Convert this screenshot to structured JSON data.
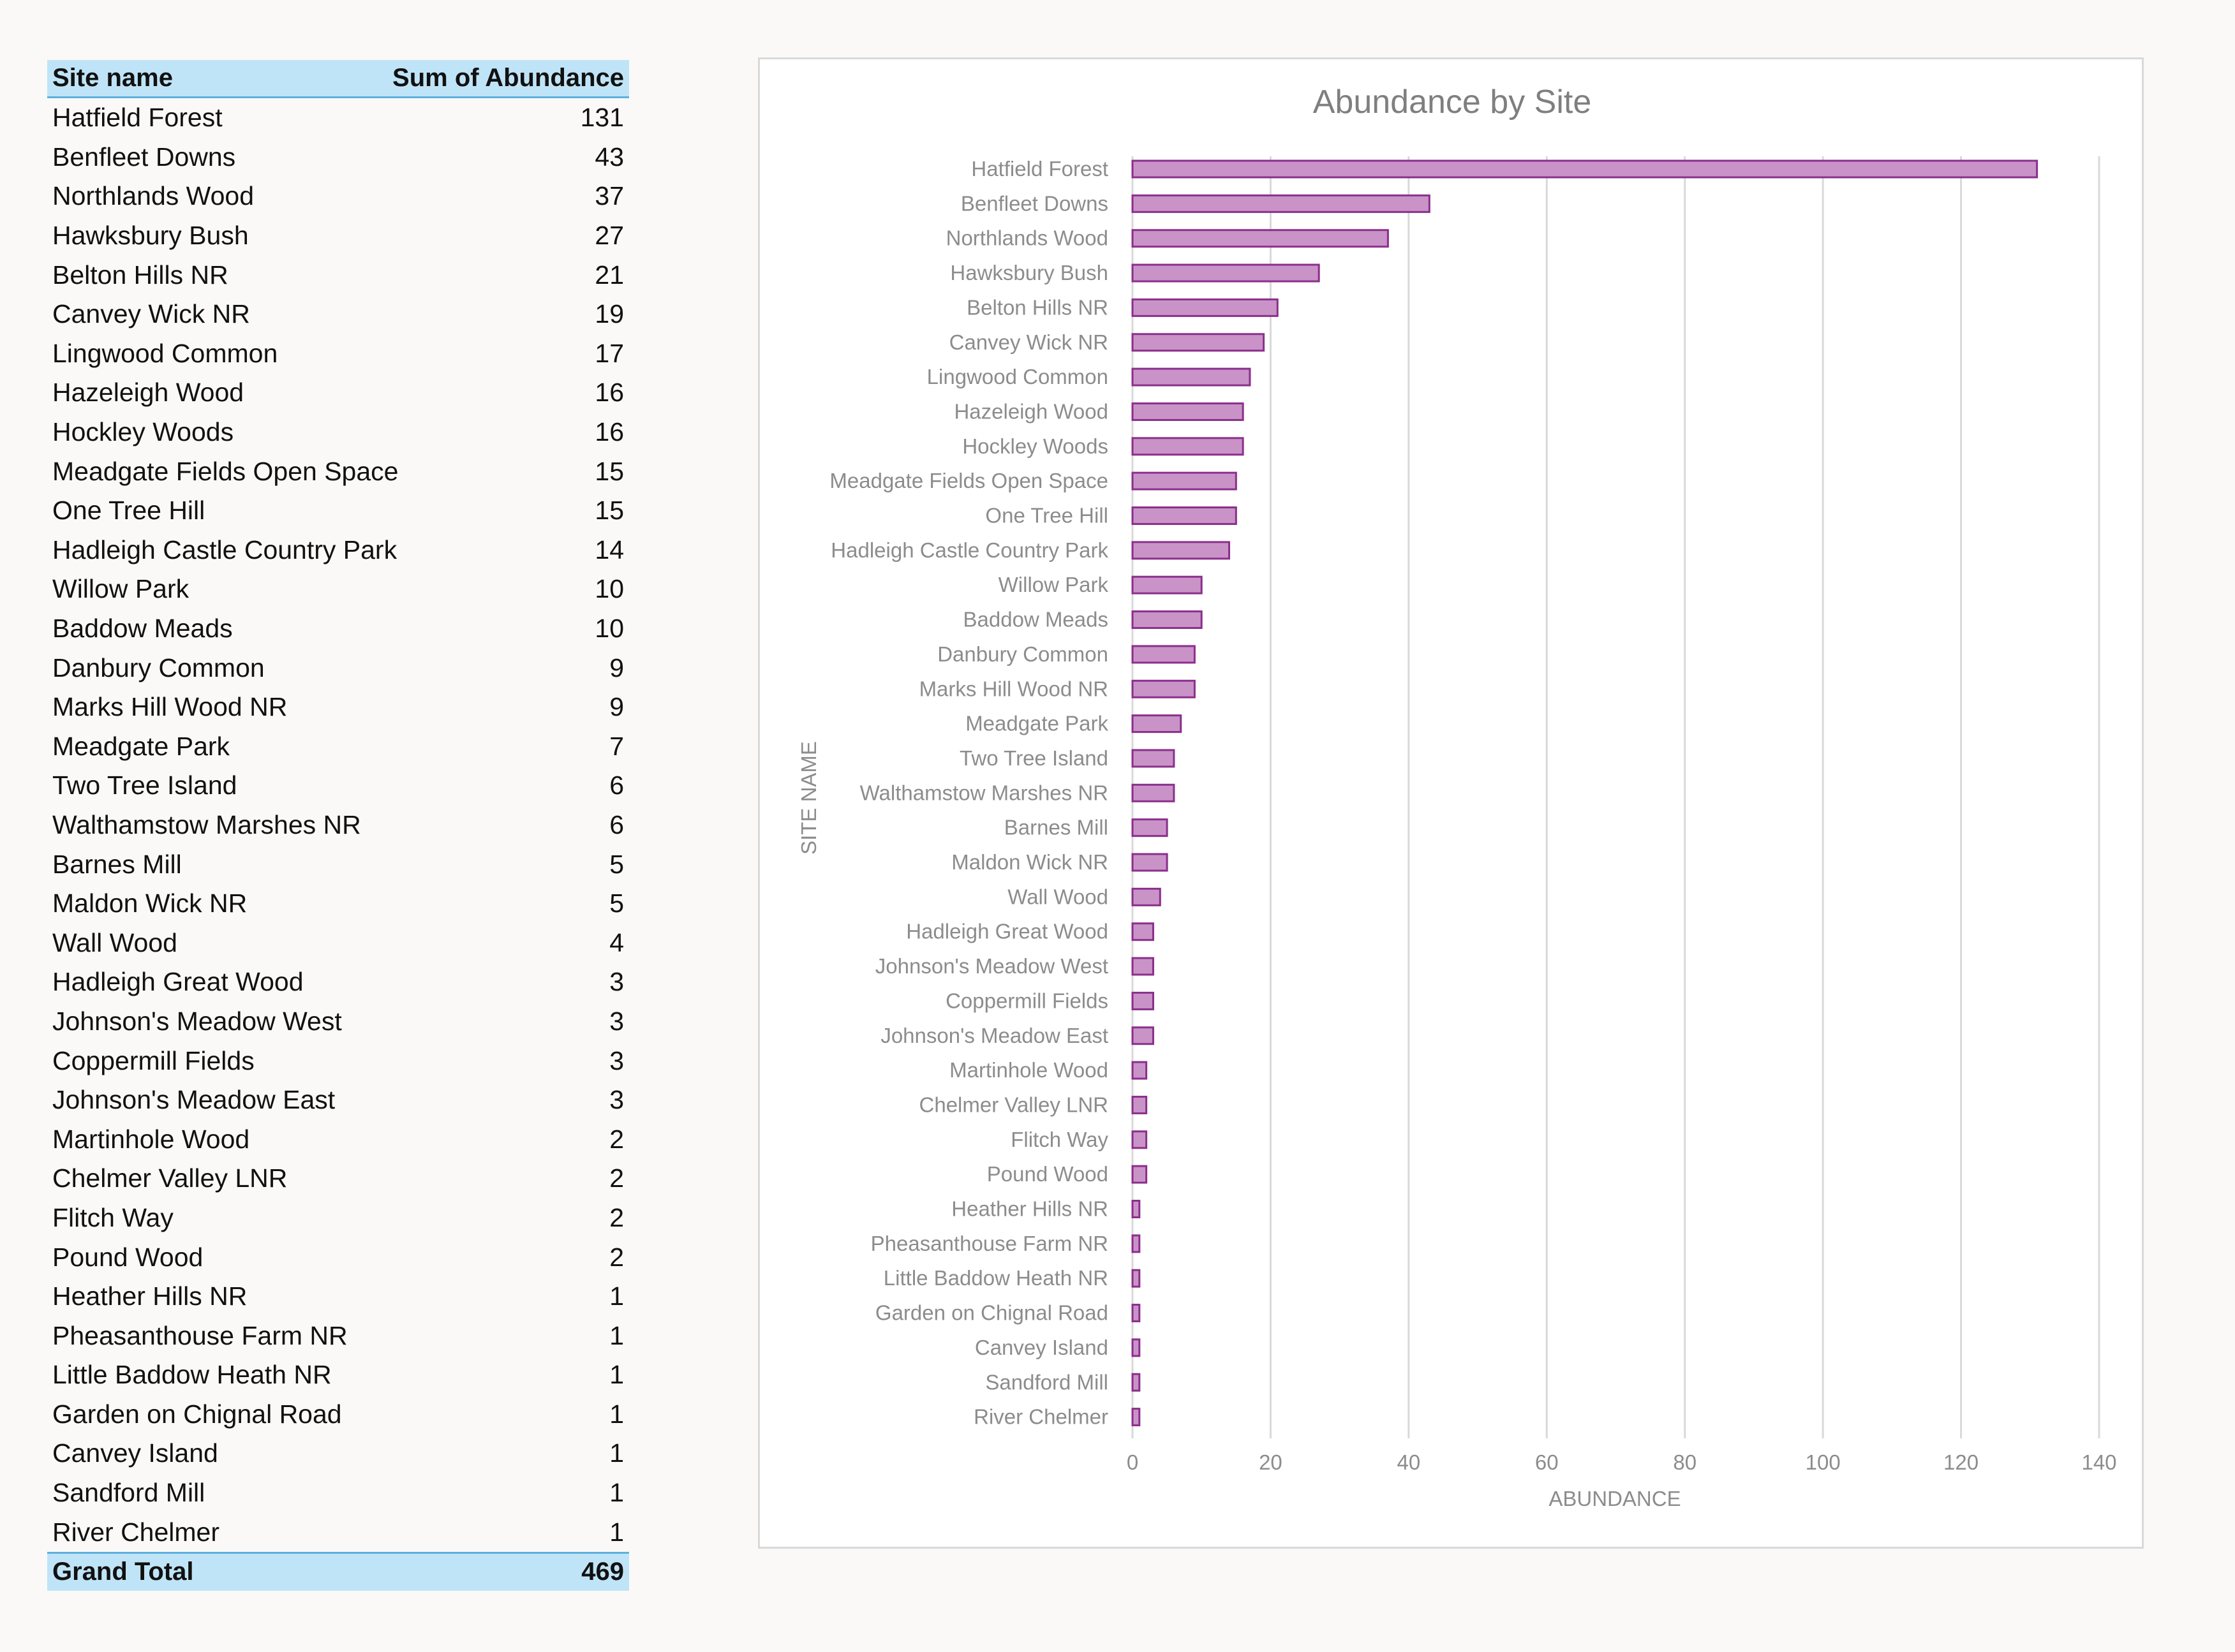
{
  "table": {
    "header": {
      "site": "Site name",
      "sum": "Sum of Abundance"
    },
    "rows": [
      {
        "site": "Hatfield Forest",
        "value": "131"
      },
      {
        "site": "Benfleet Downs",
        "value": "43"
      },
      {
        "site": "Northlands Wood",
        "value": "37"
      },
      {
        "site": "Hawksbury Bush",
        "value": "27"
      },
      {
        "site": "Belton Hills NR",
        "value": "21"
      },
      {
        "site": "Canvey Wick NR",
        "value": "19"
      },
      {
        "site": "Lingwood Common",
        "value": "17"
      },
      {
        "site": "Hazeleigh Wood",
        "value": "16"
      },
      {
        "site": "Hockley Woods",
        "value": "16"
      },
      {
        "site": "Meadgate Fields Open Space",
        "value": "15"
      },
      {
        "site": "One Tree Hill",
        "value": "15"
      },
      {
        "site": "Hadleigh Castle Country Park",
        "value": "14"
      },
      {
        "site": "Willow Park",
        "value": "10"
      },
      {
        "site": "Baddow Meads",
        "value": "10"
      },
      {
        "site": "Danbury Common",
        "value": "9"
      },
      {
        "site": "Marks Hill Wood NR",
        "value": "9"
      },
      {
        "site": "Meadgate Park",
        "value": "7"
      },
      {
        "site": "Two Tree Island",
        "value": "6"
      },
      {
        "site": "Walthamstow Marshes NR",
        "value": "6"
      },
      {
        "site": "Barnes Mill",
        "value": "5"
      },
      {
        "site": "Maldon Wick NR",
        "value": "5"
      },
      {
        "site": "Wall Wood",
        "value": "4"
      },
      {
        "site": "Hadleigh Great Wood",
        "value": "3"
      },
      {
        "site": "Johnson's Meadow West",
        "value": "3"
      },
      {
        "site": "Coppermill Fields",
        "value": "3"
      },
      {
        "site": "Johnson's Meadow East",
        "value": "3"
      },
      {
        "site": "Martinhole Wood",
        "value": "2"
      },
      {
        "site": "Chelmer Valley LNR",
        "value": "2"
      },
      {
        "site": "Flitch Way",
        "value": "2"
      },
      {
        "site": "Pound Wood",
        "value": "2"
      },
      {
        "site": "Heather Hills NR",
        "value": "1"
      },
      {
        "site": "Pheasanthouse Farm NR",
        "value": "1"
      },
      {
        "site": "Little Baddow Heath NR",
        "value": "1"
      },
      {
        "site": "Garden on Chignal Road",
        "value": "1"
      },
      {
        "site": "Canvey Island",
        "value": "1"
      },
      {
        "site": "Sandford Mill",
        "value": "1"
      },
      {
        "site": "River Chelmer",
        "value": "1"
      }
    ],
    "total": {
      "label": "Grand Total",
      "value": "469"
    }
  },
  "colors": {
    "bar_fill": "#c993c8",
    "bar_stroke": "#8b2f8b",
    "grid": "#d9d9d9",
    "table_header_bg": "#c0e4f7"
  },
  "chart_data": {
    "type": "bar",
    "orientation": "horizontal",
    "title": "Abundance by Site",
    "xlabel": "ABUNDANCE",
    "ylabel": "SITE NAME",
    "xlim": [
      0,
      140
    ],
    "xticks": [
      "0",
      "20",
      "40",
      "60",
      "80",
      "100",
      "120",
      "140"
    ],
    "grid": true,
    "legend": "none",
    "categories": [
      "Hatfield Forest",
      "Benfleet Downs",
      "Northlands Wood",
      "Hawksbury Bush",
      "Belton Hills NR",
      "Canvey Wick NR",
      "Lingwood Common",
      "Hazeleigh Wood",
      "Hockley Woods",
      "Meadgate Fields Open Space",
      "One Tree Hill",
      "Hadleigh Castle Country Park",
      "Willow Park",
      "Baddow Meads",
      "Danbury Common",
      "Marks Hill Wood NR",
      "Meadgate Park",
      "Two Tree Island",
      "Walthamstow Marshes NR",
      "Barnes Mill",
      "Maldon Wick NR",
      "Wall Wood",
      "Hadleigh Great Wood",
      "Johnson's Meadow West",
      "Coppermill Fields",
      "Johnson's Meadow East",
      "Martinhole Wood",
      "Chelmer Valley LNR",
      "Flitch Way",
      "Pound Wood",
      "Heather Hills NR",
      "Pheasanthouse Farm NR",
      "Little Baddow Heath NR",
      "Garden on Chignal Road",
      "Canvey Island",
      "Sandford Mill",
      "River Chelmer"
    ],
    "values": [
      131,
      43,
      37,
      27,
      21,
      19,
      17,
      16,
      16,
      15,
      15,
      14,
      10,
      10,
      9,
      9,
      7,
      6,
      6,
      5,
      5,
      4,
      3,
      3,
      3,
      3,
      2,
      2,
      2,
      2,
      1,
      1,
      1,
      1,
      1,
      1,
      1
    ]
  }
}
